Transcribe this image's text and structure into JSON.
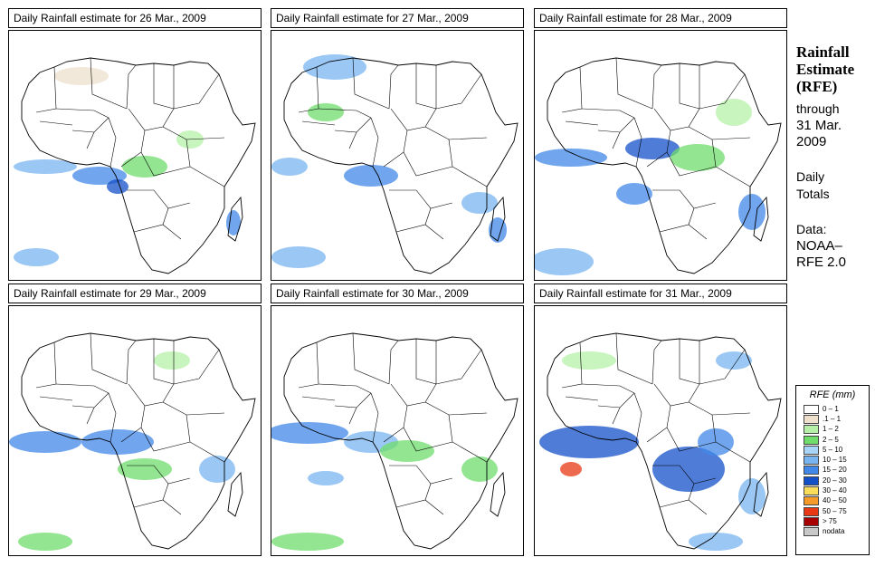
{
  "panels": [
    {
      "title": "Daily Rainfall estimate for  26 Mar., 2009"
    },
    {
      "title": "Daily Rainfall estimate for  27 Mar., 2009"
    },
    {
      "title": "Daily Rainfall estimate for  28 Mar., 2009"
    },
    {
      "title": "Daily Rainfall estimate for  29 Mar., 2009"
    },
    {
      "title": "Daily Rainfall estimate for  30 Mar., 2009"
    },
    {
      "title": "Daily Rainfall estimate for  31 Mar., 2009"
    }
  ],
  "sidebar": {
    "title_line1": "Rainfall",
    "title_line2": "Estimate",
    "title_line3": "(RFE)",
    "through_label": "through",
    "through_date_1": "31 Mar.",
    "through_date_2": "2009",
    "totals_1": "Daily",
    "totals_2": "Totals",
    "data_label": "Data:",
    "data_src_1": "NOAA–",
    "data_src_2": "RFE 2.0"
  },
  "legend": {
    "title": "RFE (mm)",
    "items": [
      {
        "label": "0 – 1",
        "color": "#ffffff"
      },
      {
        "label": ".1 – 1",
        "color": "#eee0cc"
      },
      {
        "label": "1 – 2",
        "color": "#b6f0a8"
      },
      {
        "label": "2 – 5",
        "color": "#6fdc6c"
      },
      {
        "label": "5 – 10",
        "color": "#a8d4f8"
      },
      {
        "label": "10 – 15",
        "color": "#78b4f0"
      },
      {
        "label": "15 – 20",
        "color": "#4288e8"
      },
      {
        "label": "20 – 30",
        "color": "#1450c8"
      },
      {
        "label": "30 – 40",
        "color": "#f8dc5a"
      },
      {
        "label": "40 – 50",
        "color": "#f49a28"
      },
      {
        "label": "50 – 75",
        "color": "#e83814"
      },
      {
        "label": "> 75",
        "color": "#a80000"
      },
      {
        "label": "nodata",
        "color": "#c8c8c8"
      }
    ]
  }
}
